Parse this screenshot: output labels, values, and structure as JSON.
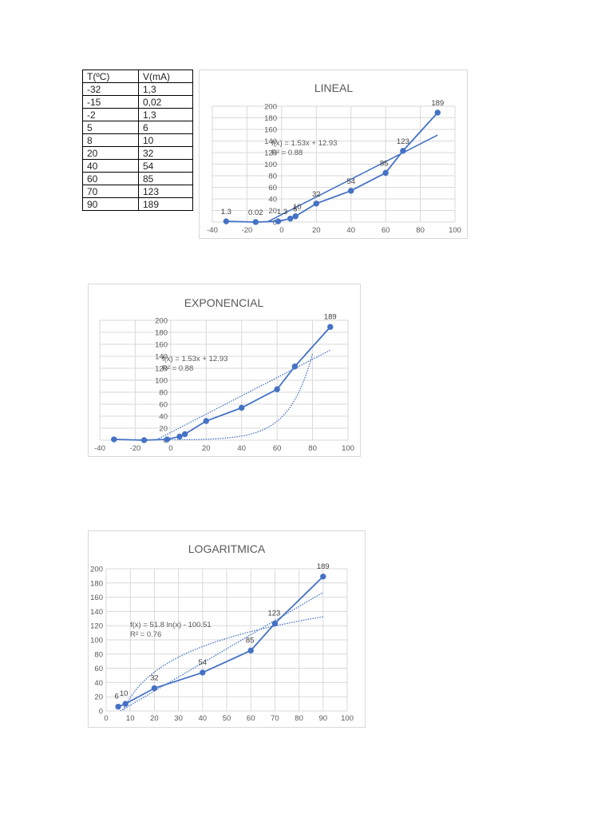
{
  "table": {
    "headers": [
      "T(ºC)",
      "V(mA)"
    ],
    "rows": [
      [
        "-32",
        "1,3"
      ],
      [
        "-15",
        "0,02"
      ],
      [
        "-2",
        "1,3"
      ],
      [
        "5",
        "6"
      ],
      [
        "8",
        "10"
      ],
      [
        "20",
        "32"
      ],
      [
        "40",
        "54"
      ],
      [
        "60",
        "85"
      ],
      [
        "70",
        "123"
      ],
      [
        "90",
        "189"
      ]
    ]
  },
  "chart_data": [
    {
      "type": "scatter",
      "title": "LINEAL",
      "x": [
        -32,
        -15,
        -2,
        5,
        8,
        20,
        40,
        60,
        70,
        90
      ],
      "y": [
        1.3,
        0.02,
        1.3,
        6,
        10,
        32,
        54,
        85,
        123,
        189
      ],
      "data_labels": [
        "1.3",
        "0.02",
        "1.3",
        "6",
        "10",
        "32",
        "54",
        "85",
        "123",
        "189"
      ],
      "trendlines": [
        {
          "type": "linear",
          "style": "solid",
          "equation": "f(x) = 1.53x + 12.93",
          "r2": "R² = 0.88"
        }
      ],
      "xlim": [
        -40,
        100
      ],
      "xticks": [
        -40,
        -20,
        0,
        20,
        40,
        60,
        80,
        100
      ],
      "ylim": [
        0,
        200
      ],
      "yticks": [
        0,
        20,
        40,
        60,
        80,
        100,
        120,
        140,
        160,
        180,
        200
      ],
      "grid": true,
      "color": "#4472c4"
    },
    {
      "type": "scatter",
      "title": "EXPONENCIAL",
      "x": [
        -32,
        -15,
        -2,
        5,
        8,
        20,
        40,
        60,
        70,
        90
      ],
      "y": [
        1.3,
        0.02,
        1.3,
        6,
        10,
        32,
        54,
        85,
        123,
        189
      ],
      "data_labels": [
        "",
        "",
        "",
        "",
        "",
        "",
        "",
        "",
        "",
        "189"
      ],
      "trendlines": [
        {
          "type": "linear",
          "style": "dotted",
          "equation": "f(x) = 1.53x + 12.93",
          "r2": "R² = 0.88"
        },
        {
          "type": "exponential",
          "style": "dotted",
          "equation": "",
          "r2": ""
        }
      ],
      "xlim": [
        -40,
        100
      ],
      "xticks": [
        -40,
        -20,
        0,
        20,
        40,
        60,
        80,
        100
      ],
      "ylim": [
        0,
        200
      ],
      "yticks": [
        0,
        20,
        40,
        60,
        80,
        100,
        120,
        140,
        160,
        180,
        200
      ],
      "grid": true,
      "color": "#4472c4"
    },
    {
      "type": "scatter",
      "title": "LOGARITMICA",
      "x": [
        5,
        8,
        20,
        40,
        60,
        70,
        90
      ],
      "y": [
        6,
        10,
        32,
        54,
        85,
        123,
        189
      ],
      "data_labels": [
        "6",
        "10",
        "32",
        "54",
        "85",
        "123",
        "189"
      ],
      "trendlines": [
        {
          "type": "logarithmic",
          "style": "dotted",
          "equation": "f(x) = 51.8 ln(x) - 100.51",
          "r2": "R² = 0.76"
        },
        {
          "type": "linear",
          "style": "dotted",
          "equation": "",
          "r2": ""
        }
      ],
      "xlim": [
        0,
        100
      ],
      "xticks": [
        0,
        10,
        20,
        30,
        40,
        50,
        60,
        70,
        80,
        90,
        100
      ],
      "ylim": [
        0,
        200
      ],
      "yticks": [
        0,
        20,
        40,
        60,
        80,
        100,
        120,
        140,
        160,
        180,
        200
      ],
      "grid": true,
      "color": "#4472c4"
    }
  ]
}
